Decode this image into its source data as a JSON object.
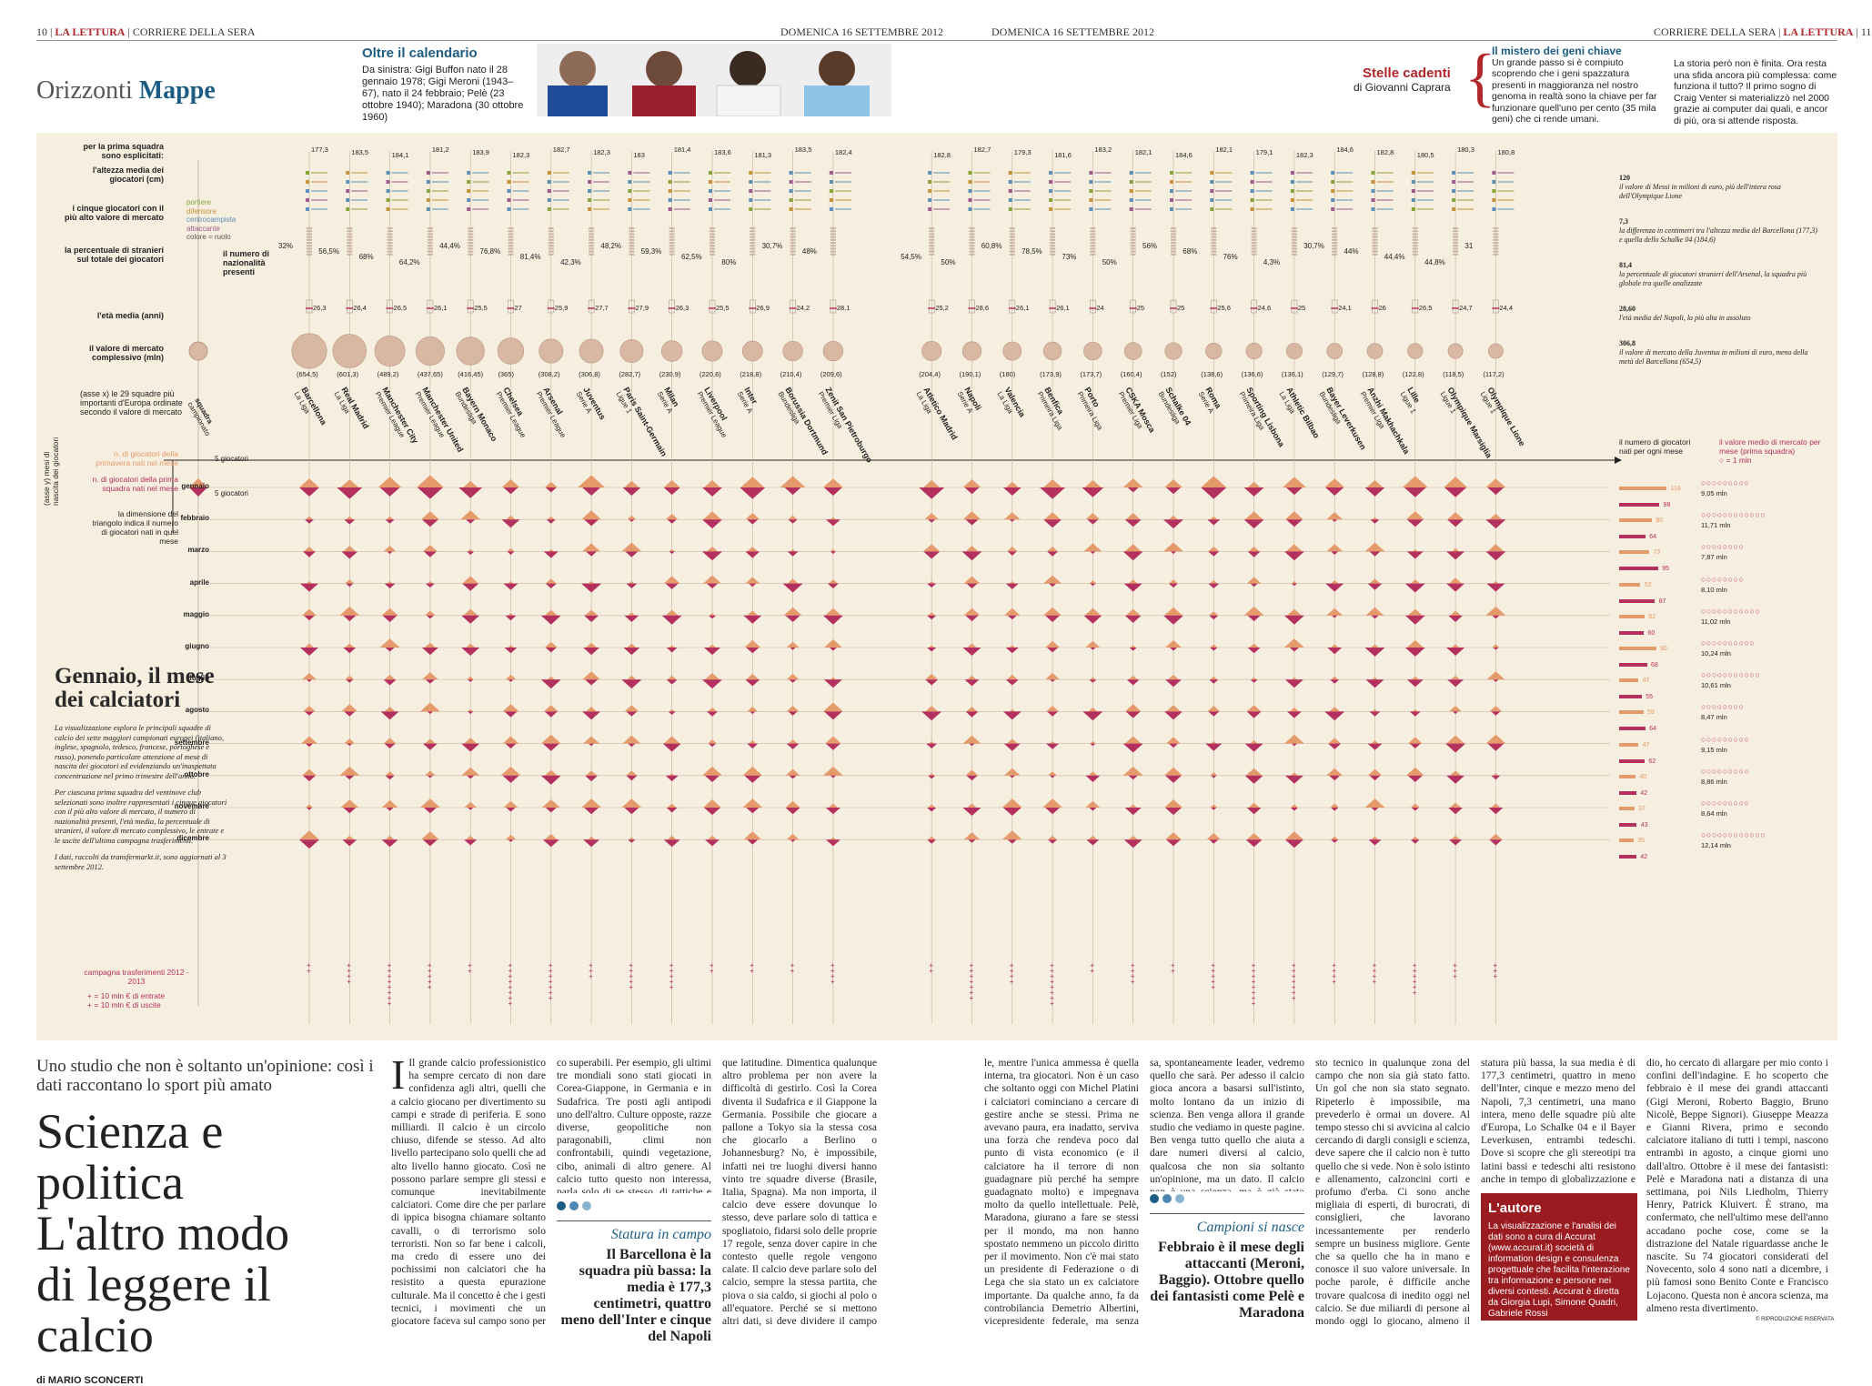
{
  "header_left": {
    "page": "10",
    "pub": "LA LETTURA",
    "paper": "CORRIERE DELLA SERA",
    "date": "DOMENICA 16 SETTEMBRE 2012",
    "section1": "Orizzonti",
    "section2": "Mappe"
  },
  "header_right": {
    "page": "11",
    "pub": "LA LETTURA",
    "paper": "CORRIERE DELLA SERA",
    "date": "DOMENICA 16 SETTEMBRE 2012"
  },
  "calendar": {
    "title": "Oltre il calendario",
    "text": "Da sinistra: Gigi Buffon nato il 28 gennaio 1978; Gigi Meroni (1943–67), nato il 24 febbraio; Pelè (23 ottobre 1940); Maradona (30 ottobre 1960)"
  },
  "stelle": {
    "title": "Stelle cadenti",
    "author": "di Giovanni Caprara",
    "sub": "Il mistero dei geni chiave",
    "col1": "Un grande passo si è compiuto scoprendo che i geni spazzatura presenti in maggioranza nel nostro genoma in realtà sono la chiave per far funzionare quell'uno per cento (35 mila geni) che ci rende umani.",
    "col2": "La storia però non è finita. Ora resta una sfida ancora più complessa: come funziona il tutto? Il primo sogno di Craig Venter si materializzò nel 2000 grazie ai computer dai quali, e ancor di più, ora si attende risposta."
  },
  "chart_labels": {
    "prima_squadra": "per la prima squadra sono esplicitati:",
    "altezza": "l'altezza media dei giocatori (cm)",
    "cinque": "i cinque giocatori con il più alto valore di mercato",
    "percentuale": "la percentuale di stranieri sul totale dei giocatori",
    "nazionalita": "il numero di nazionalità presenti",
    "nazionalita_unit": "= 1",
    "eta": "l'età media (anni)",
    "valore": "il valore di mercato complessivo (mln)",
    "roles": [
      "portiere",
      "difensore",
      "centrocampista",
      "attaccante",
      "colore = ruolo"
    ],
    "axis_x": "(asse x) le 29 squadre più importanti d'Europa ordinate secondo il valore di mercato",
    "axis_y": "(asse y) mesi di nascita dei giocatori",
    "prim": "n. di giocatori della primavera nati nel mese",
    "first": "n. di giocatori della prima squadra nati nel mese",
    "tri": "la dimensione del triangolo indica il numero di giocatori nati in quel mese",
    "cinque_g": "5 giocatori",
    "right_num": "il numero di giocatori nati per ogni mese",
    "right_val": "il valore medio di mercato per mese (prima squadra)",
    "right_unit": "= 1 mln",
    "legend_team": "squadra",
    "legend_team2": "campionato",
    "campagna": "campagna trasferimenti 2012 - 2013",
    "entrate": "+ = 10 mln € di entrate",
    "uscite": "+ = 10 mln € di uscite"
  },
  "months": [
    "gennaio",
    "febbraio",
    "marzo",
    "aprile",
    "maggio",
    "giugno",
    "luglio",
    "agosto",
    "settembre",
    "ottobre",
    "novembre",
    "dicembre"
  ],
  "right_stats": [
    {
      "a": "116",
      "b": "98",
      "v": "9,05 mln"
    },
    {
      "a": "80",
      "b": "64",
      "v": "11,71 mln"
    },
    {
      "a": "73",
      "b": "95",
      "v": "7,87 mln"
    },
    {
      "a": "52",
      "b": "87",
      "v": "8,10 mln"
    },
    {
      "a": "62",
      "b": "60",
      "v": "11,02 mln"
    },
    {
      "a": "90",
      "b": "68",
      "v": "10,24 mln"
    },
    {
      "a": "47",
      "b": "55",
      "v": "10,61 mln"
    },
    {
      "a": "59",
      "b": "64",
      "v": "8,47 mln"
    },
    {
      "a": "47",
      "b": "62",
      "v": "9,15 mln"
    },
    {
      "a": "40",
      "b": "42",
      "v": "8,86 mln"
    },
    {
      "a": "37",
      "b": "43",
      "v": "8,64 mln"
    },
    {
      "a": "35",
      "b": "42",
      "v": "12,14 mln"
    }
  ],
  "right_notes": [
    {
      "n": "120",
      "t": "il valore di Messi in milioni di euro, più dell'intera rosa dell'Olympique Lione"
    },
    {
      "n": "7,3",
      "t": "la differenza in centimetri tra l'altezza media del Barcellona (177,3) e quella dello Schalke 04 (184,6)"
    },
    {
      "n": "81,4",
      "t": "la percentuale di giocatori stranieri dell'Arsenal, la squadra più globale tra quelle analizzate"
    },
    {
      "n": "28,60",
      "t": "l'età media del Napoli, la più alta in assoluto"
    },
    {
      "n": "306,8",
      "t": "il valore di mercato della Juventus in milioni di euro, meno della metà del Barcellona (654,5)"
    }
  ],
  "teams": [
    {
      "n": "Barcellona",
      "l": "La Liga",
      "h": "177,3",
      "p": "32%",
      "a": "26,3",
      "v": "(654,5)"
    },
    {
      "n": "Real Madrid",
      "l": "La Liga",
      "h": "183,5",
      "p": "56,5%",
      "a": "26,4",
      "v": "(601,3)"
    },
    {
      "n": "Manchester City",
      "l": "Premier League",
      "h": "184,1",
      "p": "68%",
      "a": "26,5",
      "v": "(489,2)"
    },
    {
      "n": "Manchester United",
      "l": "Premier League",
      "h": "181,2",
      "p": "64,2%",
      "a": "26,1",
      "v": "(437,65)"
    },
    {
      "n": "Bayern Monaco",
      "l": "Bundesliga",
      "h": "183,9",
      "p": "44,4%",
      "a": "25,5",
      "v": "(416,45)"
    },
    {
      "n": "Chelsea",
      "l": "Premier League",
      "h": "182,3",
      "p": "76,8%",
      "a": "27",
      "v": "(365)"
    },
    {
      "n": "Arsenal",
      "l": "Premier League",
      "h": "182,7",
      "p": "81,4%",
      "a": "25,9",
      "v": "(308,2)"
    },
    {
      "n": "Juventus",
      "l": "Serie A",
      "h": "182,3",
      "p": "42,3%",
      "a": "27,7",
      "v": "(306,8)"
    },
    {
      "n": "Paris Saint-Germain",
      "l": "Ligue 1",
      "h": "183",
      "p": "48,2%",
      "a": "27,9",
      "v": "(282,7)"
    },
    {
      "n": "Milan",
      "l": "Serie A",
      "h": "181,4",
      "p": "59,3%",
      "a": "26,3",
      "v": "(230,9)"
    },
    {
      "n": "Liverpool",
      "l": "Premier League",
      "h": "183,6",
      "p": "62,5%",
      "a": "25,5",
      "v": "(220,6)"
    },
    {
      "n": "Inter",
      "l": "Serie A",
      "h": "181,3",
      "p": "80%",
      "a": "26,9",
      "v": "(218,8)"
    },
    {
      "n": "Borussia Dortmund",
      "l": "Bundesliga",
      "h": "183,5",
      "p": "30,7%",
      "a": "24,2",
      "v": "(210,4)"
    },
    {
      "n": "Zenit San Pietroburgo",
      "l": "Premier Liga",
      "h": "182,4",
      "p": "48%",
      "a": "28,1",
      "v": "(209,6)"
    },
    {
      "n": "Atletico Madrid",
      "l": "La Liga",
      "h": "182,8",
      "p": "54,5%",
      "a": "25,2",
      "v": "(204,4)"
    },
    {
      "n": "Napoli",
      "l": "Serie A",
      "h": "182,7",
      "p": "50%",
      "a": "28,6",
      "v": "(190,1)"
    },
    {
      "n": "Valencia",
      "l": "La Liga",
      "h": "179,3",
      "p": "60,8%",
      "a": "26,1",
      "v": "(180)"
    },
    {
      "n": "Benfica",
      "l": "Primeira Liga",
      "h": "181,6",
      "p": "78,5%",
      "a": "26,1",
      "v": "(173,9)"
    },
    {
      "n": "Porto",
      "l": "Primeira Liga",
      "h": "183,2",
      "p": "73%",
      "a": "24",
      "v": "(173,7)"
    },
    {
      "n": "CSKA Mosca",
      "l": "Premier Liga",
      "h": "182,1",
      "p": "50%",
      "a": "25",
      "v": "(160,4)"
    },
    {
      "n": "Schalke 04",
      "l": "Bundesliga",
      "h": "184,6",
      "p": "56%",
      "a": "25",
      "v": "(152)"
    },
    {
      "n": "Roma",
      "l": "Serie A",
      "h": "182,1",
      "p": "68%",
      "a": "25,6",
      "v": "(138,6)"
    },
    {
      "n": "Sporting Lisbona",
      "l": "Primeira Liga",
      "h": "179,1",
      "p": "76%",
      "a": "24,6",
      "v": "(136,6)"
    },
    {
      "n": "Athletic Bilbao",
      "l": "La Liga",
      "h": "182,3",
      "p": "4,3%",
      "a": "25",
      "v": "(136,1)"
    },
    {
      "n": "Bayer Leverkusen",
      "l": "Bundesliga",
      "h": "184,6",
      "p": "30,7%",
      "a": "24,1",
      "v": "(129,7)"
    },
    {
      "n": "Anzhi Makhachkala",
      "l": "Premier Liga",
      "h": "182,8",
      "p": "44%",
      "a": "26",
      "v": "(128,8)"
    },
    {
      "n": "Lille",
      "l": "Ligue 1",
      "h": "180,5",
      "p": "44,4%",
      "a": "26,5",
      "v": "(122,8)"
    },
    {
      "n": "Olympique Marsiglia",
      "l": "Ligue 1",
      "h": "180,3",
      "p": "44,8%",
      "a": "24,7",
      "v": "(118,5)"
    },
    {
      "n": "Olympique Lione",
      "l": "Ligue 1",
      "h": "180,8",
      "p": "31",
      "a": "24,4",
      "v": "(117,2)"
    }
  ],
  "intro": {
    "title": "Gennaio, il mese dei calciatori",
    "p1": "La visualizzazione esplora le principali squadre di calcio dei sette maggiori campionati europei (italiano, inglese, spagnolo, tedesco, francese, portoghese e russo), ponendo particolare attenzione al mese di nascita dei giocatori ed evidenziando un'inaspettata concentrazione nel primo trimestre dell'anno.",
    "p2": "Per ciascuna prima squadra del ventinove club selezionati sono inoltre rappresentati i cinque giocatori con il più alto valore di mercato, il numero di nazionalità presenti, l'età media, la percentuale di stranieri, il valore di mercato complessivo, le entrate e le uscite dell'ultima campagna trasferimenti.",
    "p3": "I dati, raccolti da transfermarkt.it, sono aggiornati al 3 settembre 2012."
  },
  "article": {
    "kicker": "Uno studio che non è soltanto un'opinione: così i dati raccontano lo sport più amato",
    "title1": "Scienza e politica",
    "title2": "L'altro modo",
    "title3": "di leggere il calcio",
    "byline": "di MARIO SCONCERTI",
    "col1": "Il grande calcio professionistico ha sempre cercato di non dare confidenza agli altri, quelli che a calcio giocano per divertimento su campi e strade di periferia. E sono milliardi. Il calcio è un circolo chiuso, difende se stesso. Ad alto livello partecipano solo quelli che ad alto livello hanno giocato. Così ne possono parlare sempre gli stessi e comunque inevitabilmente calciatori. Come dire che per parlare di ippica bisogna chiamare soltanto cavalli, o di terrorismo solo terroristi. Non so far bene i calcoli, ma credo di essere uno dei pochissimi non calciatori che ha resistito a questa epurazione culturale. Ma il concetto è che i gesti tecnici, i movimenti che un giocatore faceva sul campo sono per forza gli unici adatti a dare la sapienza per giudicare i movimenti di oggi. Senza eccezione. Questo porta ad alcune strettoie po-",
    "col2": "co superabili. Per esempio, gli ultimi tre mondiali sono stati giocati in Corea-Giappone, in Germania e in Sudafrica. Tre posti agli antipodi uno dell'altro. Culture opposte, razze diverse, geopolitiche non paragonabili, climi non confrontabili, quindi vegetazione, cibo, animali di altro genere. Al calcio tutto questo non interessa, parla solo di se stesso, di tattiche e spogliatoio allo stesso modo in qualunque",
    "col3": "que latitudine. Dimentica qualunque altro problema per non avere la difficoltà di gestirlo. Così la Corea diventa il Sudafrica e il Giappone la Germania. Possibile che giocare a pallone a Tokyo sia la stessa cosa che giocarlo a Berlino o Johannesburg? No, è impossibile, infatti nei tre luoghi diversi hanno vinto tre squadre diverse (Brasile, Italia, Spagna). Ma non importa, il calcio deve essere dovunque lo stesso, deve parlare solo di tattica e spogliatoio, fidarsi solo delle proprie 17 regole, senza dover capire in che contesto quelle regole vengono calate. Il calcio deve parlare solo del calcio, sempre la stessa partita, che piova o sia caldo, si giochi al polo o all'equatore. Perché se si mettono altri dati, si deve dividere il campo con altri professionisti che danno altre impressioni, spiegazioni diverse. Questa è concorrenza trasversa-",
    "col4": "le, mentre l'unica ammessa è quella interna, tra giocatori. Non è un caso che soltanto oggi con Michel Platini i calciatori cominciano a cercare di gestire anche se stessi. Prima ne avevano paura, era inadatto, serviva una forza che rendeva poco dal punto di vista economico (e il calciatore ha il terrore di non guadagnare più perché ha sempre guadagnato molto) e impegnava molto da quello intellettuale. Pelè, Maradona, giurano a fare se stessi per il mondo, ma non hanno spostato nemmeno un piccolo diritto per il movimento. Non c'è mai stato un presidente di Federazione o di Lega che sia stato un ex calciatore importante. Da qualche anno, fa da controbilancia Demetrio Albertini, vicepresidente federale, ma senza riuscire a trovare una collocazione vera. Si pensava a Gianluca Vialli, si spera in Alessandro Del Piero, gente diver-",
    "col5": "sa, spontaneamente leader, vedremo quello che sarà. Per adesso il calcio gioca ancora a basarsi sull'istinto, molto lontano da un inizio di scienza. Ben venga allora il grande studio che vediamo in queste pagine. Ben venga tutto quello che aiuta a dare numeri diversi al calcio, qualcosa che non sia soltanto un'opinione, ma un dato. Il calcio non è una scienza, ma è già stato giocato tutto. Non c'è un ge-",
    "col6": "sto tecnico in qualunque zona del campo che non sia già stato fatto. Un gol che non sia stato segnato. Ripeterlo è impossibile, ma prevederlo è ormai un dovere. Al tempo stesso chi si avvicina al calcio cercando di dargli consigli e scienza, deve sapere che il calcio non è tutto quello che si vede. Non è solo istinto e allenamento, calzoncini corti e profumo d'erba. Ci sono anche migliaia di esperti, di burocrati, di consiglieri, che lavorano incessantemente per renderlo sempre un business migliore. Gente che sa quello che ha in mano e conosce il suo valore universale. In poche parole, è difficile anche trovare qualcosa di inedito oggi nel calcio. Se due miliardi di persone al mondo oggi lo giocano, almeno il doppio lo seguono e lo studiano. Fa sempre impressione però sapere che il Barcellona è la squadra con la",
    "col7": "statura più bassa, la sua media è di 177,3 centimetri, quattro in meno dell'Inter, cinque e mezzo meno del Napoli, 7,3 centimetri, una mano intera, meno delle squadre più alte d'Europa, Lo Schalke 04 e il Bayer Leverkusen, entrambi tedeschi. Dove si scopre che gli stereotipi tra latini bassi e tedeschi alti resistono anche in tempo di globalizzazione e squadre mescolate. Spinto dalla curiosità di questo stu-",
    "col8": "dio, ho cercato di allargare per mio conto i confini dell'indagine. E ho scoperto che febbraio è il mese dei grandi attaccanti (Gigi Meroni, Roberto Baggio, Bruno Nicolè, Beppe Signori). Giuseppe Meazza e Gianni Rivera, primo e secondo calciatore italiano di tutti i tempi, nascono entrambi in agosto, a cinque giorni uno dall'altro. Ottobre è il mese dei fantasisti: Pelè e Maradona nati a distanza di una settimana, poi Nils Liedholm, Thierry Henry, Patrick Kluivert. È strano, ma confermato, che nell'ultimo mese dell'anno accadano poche cose, come se la distrazione del Natale riguardasse anche le nascite. Su 74 giocatori considerati del Novecento, solo 4 sono nati a dicembre, i più famosi sono Benito Conte e Francisco Lojacono. Questa non è ancora scienza, ma almeno resta divertimento."
  },
  "pullquote1": {
    "title": "Statura in campo",
    "text": "Il Barcellona è la squadra più bassa: la media è 177,3 centimetri, quattro meno dell'Inter e cinque del Napoli"
  },
  "pullquote2": {
    "title": "Campioni si nasce",
    "text": "Febbraio è il mese degli attaccanti (Meroni, Baggio). Ottobre quello dei fantasisti come Pelè e Maradona"
  },
  "autore": {
    "title": "L'autore",
    "text": "La visualizzazione e l'analisi dei dati sono a cura di Accurat (www.accurat.it) società di information design e consulenza progettuale che facilita l'interazione tra informazione e persone nei diversi contesti. Accurat è diretta da Giorgia Lupi, Simone Quadri, Gabriele Rossi"
  },
  "copyright": "© RIPRODUZIONE RISERVATA",
  "colors": {
    "accent": "#b0262b",
    "chart_bg": "#f6eedf",
    "magenta": "#b4305e",
    "orange": "#e59a6b",
    "teal": "#1d5d84"
  }
}
